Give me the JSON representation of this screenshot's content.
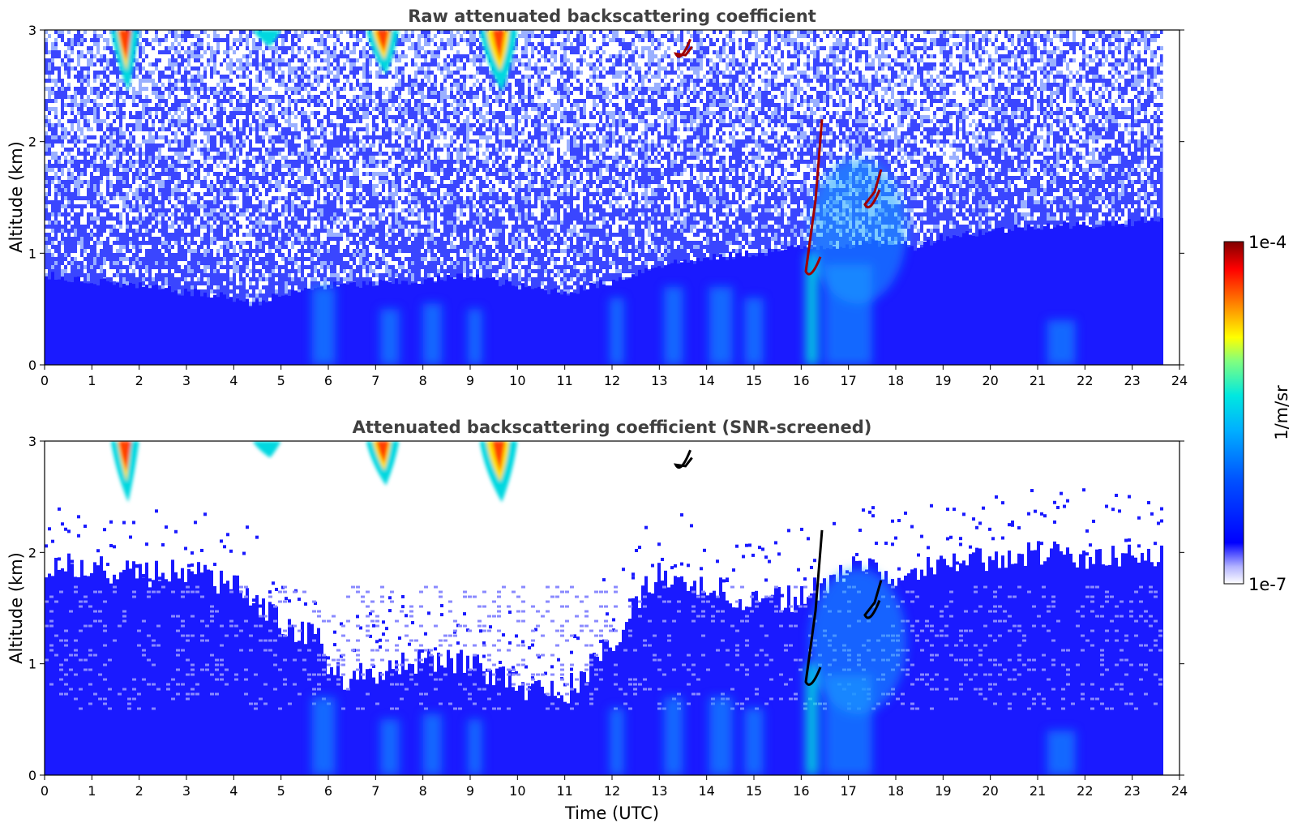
{
  "chart_data": [
    {
      "type": "heatmap",
      "title": "Raw attenuated backscattering coefficient",
      "xlabel": "",
      "ylabel": "Altitude (km)",
      "xlim": [
        0,
        24
      ],
      "ylim": [
        0,
        3
      ],
      "xticks": [
        "0",
        "1",
        "2",
        "3",
        "4",
        "5",
        "6",
        "7",
        "8",
        "9",
        "10",
        "11",
        "12",
        "13",
        "14",
        "15",
        "16",
        "17",
        "18",
        "19",
        "20",
        "21",
        "22",
        "23",
        "24"
      ],
      "yticks": [
        "0",
        "1",
        "2",
        "3"
      ],
      "data_end_hour": 23.65,
      "features": [
        {
          "kind": "boundary_layer_top_km",
          "x": [
            0,
            4,
            4.3,
            5.8,
            8,
            9,
            10,
            11,
            12,
            13,
            14,
            15,
            16,
            18,
            18.3,
            19,
            20,
            21,
            22,
            23.65
          ],
          "y": [
            0.8,
            0.6,
            0.55,
            0.7,
            0.75,
            0.8,
            0.7,
            0.65,
            0.75,
            0.9,
            0.95,
            1.0,
            1.05,
            1.1,
            1.05,
            1.15,
            1.2,
            1.25,
            1.25,
            1.3
          ]
        },
        {
          "kind": "cirrus_fall",
          "x_start": 1.4,
          "x_end": 2.0,
          "top_km": 3,
          "bottom_km": 2.45,
          "peak": "high"
        },
        {
          "kind": "cirrus_fall",
          "x_start": 4.4,
          "x_end": 5.0,
          "top_km": 3,
          "bottom_km": 2.85,
          "peak": "medium"
        },
        {
          "kind": "cirrus_fall",
          "x_start": 6.8,
          "x_end": 7.5,
          "top_km": 3,
          "bottom_km": 2.6,
          "peak": "high"
        },
        {
          "kind": "cirrus_fall",
          "x_start": 9.2,
          "x_end": 10.0,
          "top_km": 3,
          "bottom_km": 2.45,
          "peak": "high"
        },
        {
          "kind": "cloud_layer",
          "x": 16.2,
          "bottom_km": 0.75,
          "top_km": 2.2,
          "peak": "very high"
        },
        {
          "kind": "cloud_layer",
          "x": 17.45,
          "bottom_km": 1.35,
          "top_km": 1.75,
          "peak": "high"
        },
        {
          "kind": "cloud_layer",
          "x": 13.45,
          "bottom_km": 2.7,
          "top_km": 2.85,
          "peak": "very high"
        }
      ]
    },
    {
      "type": "heatmap",
      "title": "Attenuated backscattering coefficient (SNR-screened)",
      "xlabel": "Time (UTC)",
      "ylabel": "Altitude (km)",
      "xlim": [
        0,
        24
      ],
      "ylim": [
        0,
        3
      ],
      "xticks": [
        "0",
        "1",
        "2",
        "3",
        "4",
        "5",
        "6",
        "7",
        "8",
        "9",
        "10",
        "11",
        "12",
        "13",
        "14",
        "15",
        "16",
        "17",
        "18",
        "19",
        "20",
        "21",
        "22",
        "23",
        "24"
      ],
      "yticks": [
        "0",
        "1",
        "2",
        "3"
      ],
      "data_end_hour": 23.65,
      "screened_top_km": {
        "x": [
          0,
          2,
          3,
          4,
          4.5,
          5.8,
          6,
          7,
          8,
          9,
          10,
          11,
          12,
          12.5,
          13,
          14,
          15,
          16,
          17,
          18,
          19,
          20,
          21,
          22,
          23.65
        ],
        "y": [
          1.9,
          1.8,
          1.85,
          1.7,
          1.5,
          1.2,
          0.85,
          0.9,
          1.05,
          1.0,
          0.8,
          0.75,
          1.2,
          1.6,
          1.8,
          1.7,
          1.55,
          1.6,
          1.85,
          1.8,
          1.9,
          1.95,
          2.0,
          1.95,
          2.0
        ]
      }
    }
  ],
  "colorbar": {
    "label": "1/m/sr",
    "max_label": "1e-4",
    "min_label": "1e-7",
    "scale": "log",
    "colormap": [
      "#ffffff",
      "#b3b3ff",
      "#0000ff",
      "#0050ff",
      "#00a0ff",
      "#00e0ff",
      "#40ffc0",
      "#a0ff60",
      "#ffff00",
      "#ff8000",
      "#ff0000",
      "#800000"
    ]
  }
}
